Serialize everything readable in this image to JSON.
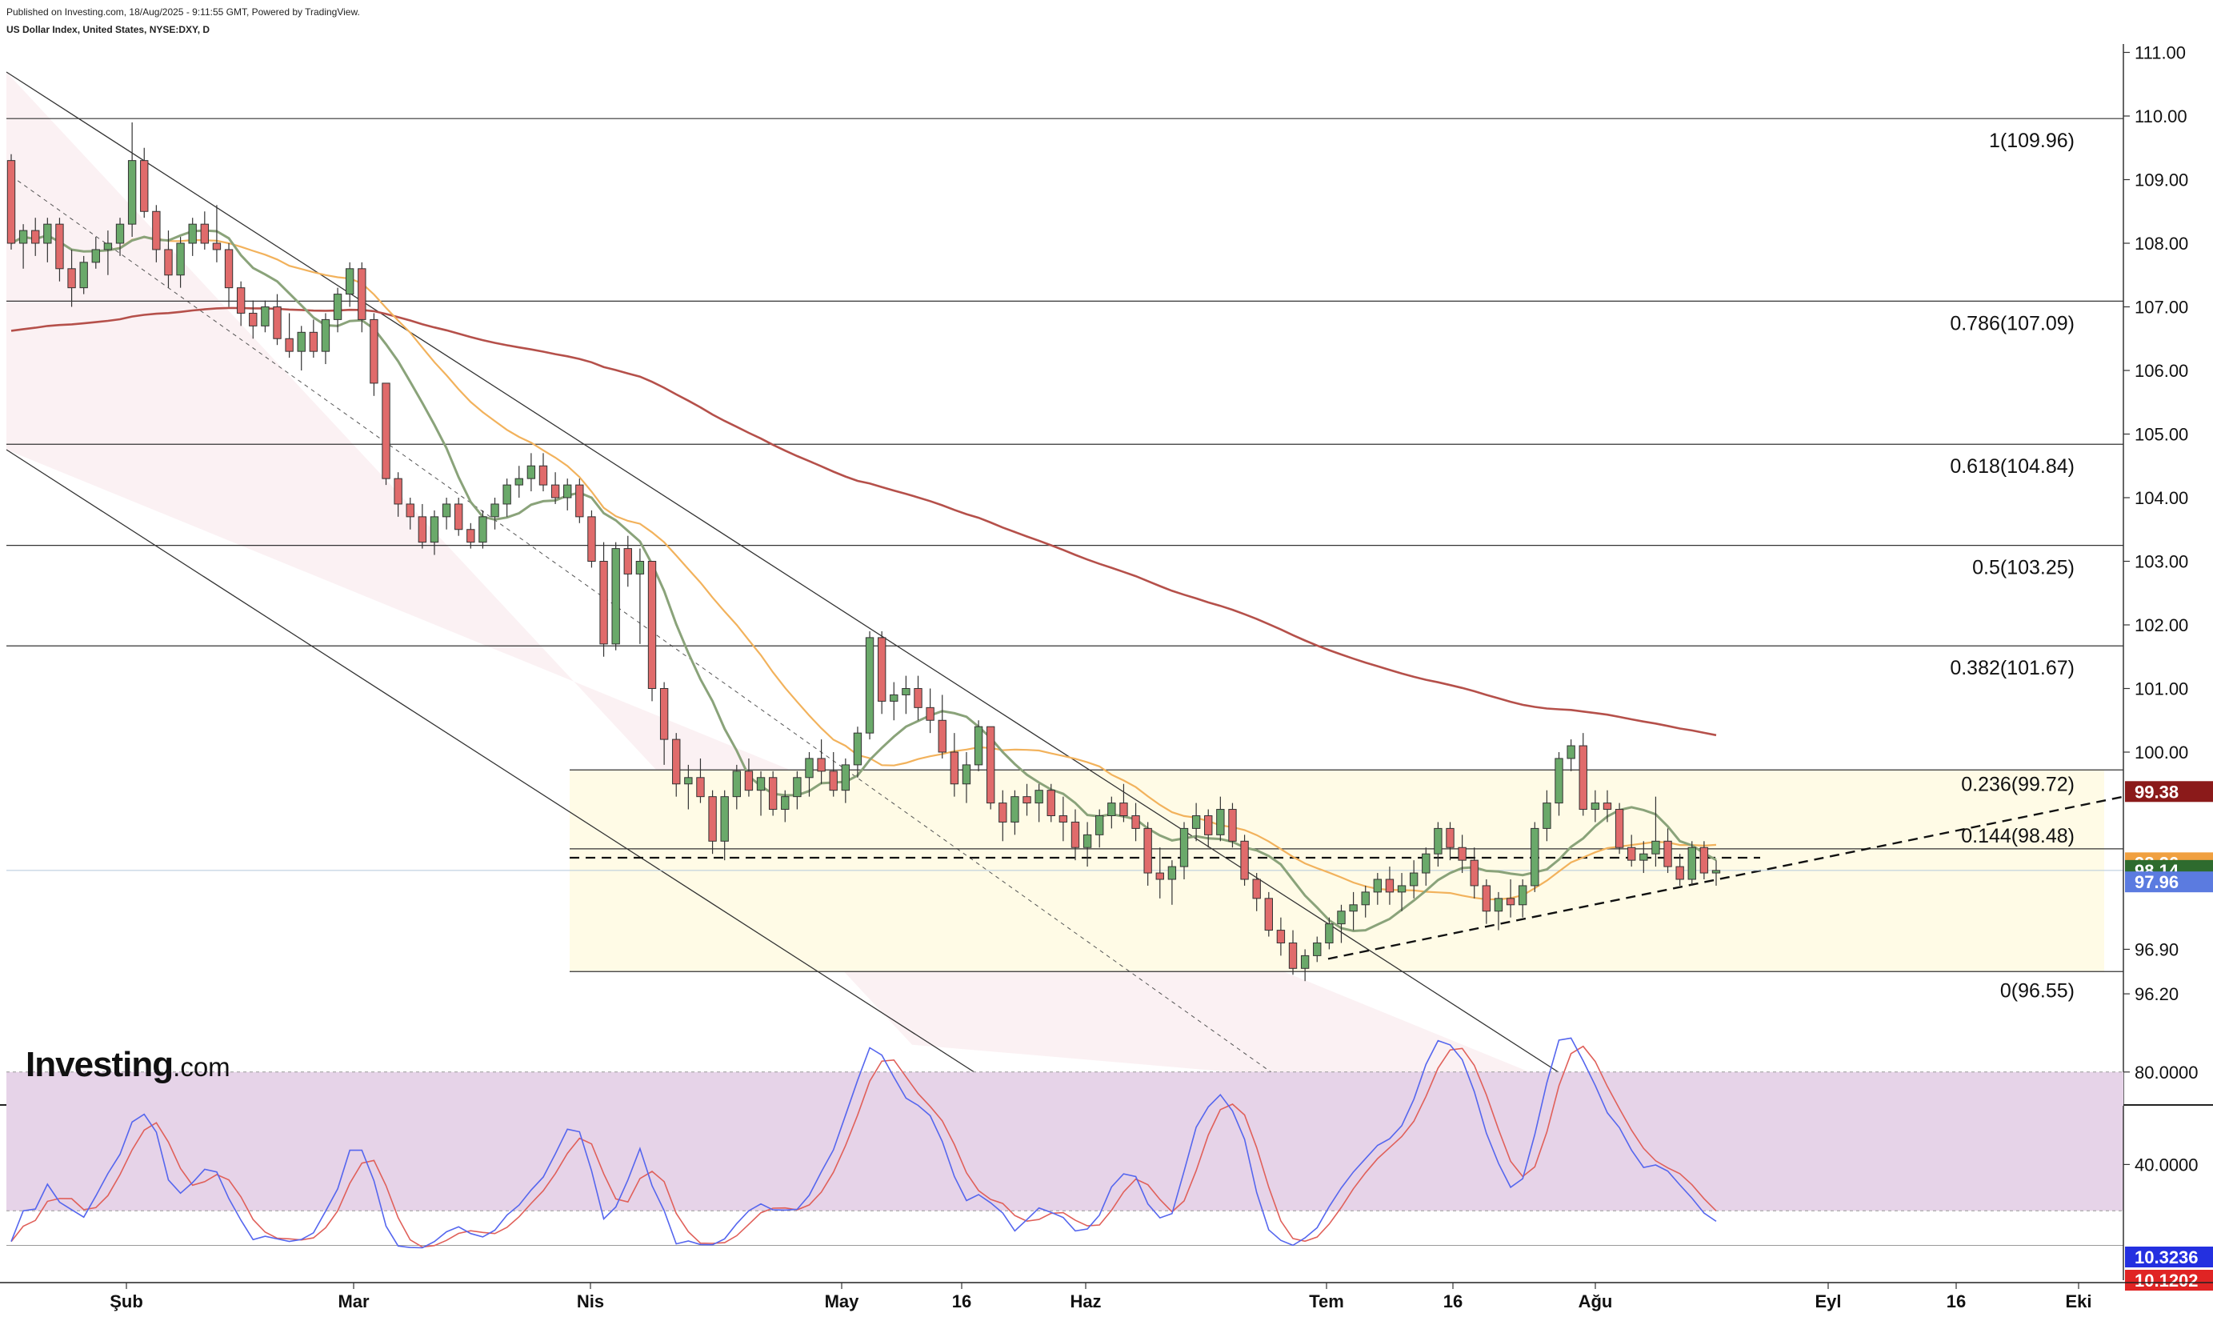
{
  "header": {
    "published": "Published on Investing.com, 18/Aug/2025 - 9:11:55 GMT, Powered by TradingView.",
    "symbol": "US Dollar Index, United States, NYSE:DXY, D"
  },
  "logo": {
    "brand": "Investing",
    "suffix": ".com"
  },
  "chart_data": {
    "type": "candlestick",
    "title": "US Dollar Index, United States, NYSE:DXY, D",
    "x_tick_labels": [
      "Şub",
      "Mar",
      "Nis",
      "May",
      "16",
      "Haz",
      "Tem",
      "16",
      "Ağu",
      "Eyl",
      "16",
      "Eki"
    ],
    "y_tick_labels": [
      "111.00",
      "110.00",
      "109.00",
      "108.00",
      "107.00",
      "106.00",
      "105.00",
      "104.00",
      "103.00",
      "102.00",
      "101.00",
      "100.00",
      "96.90",
      "96.20"
    ],
    "ylim": [
      96.0,
      111.5
    ],
    "fib_levels": [
      {
        "label": "1(109.96)",
        "value": 109.96
      },
      {
        "label": "0.786(107.09)",
        "value": 107.09
      },
      {
        "label": "0.618(104.84)",
        "value": 104.84
      },
      {
        "label": "0.5(103.25)",
        "value": 103.25
      },
      {
        "label": "0.382(101.67)",
        "value": 101.67
      },
      {
        "label": "0.236(99.72)",
        "value": 99.72
      },
      {
        "label": "0.144(98.48)",
        "value": 98.48
      },
      {
        "label": "0(96.55)",
        "value": 96.55
      }
    ],
    "price_badges": [
      {
        "label": "99.38",
        "value": 99.38,
        "color": "#8b1a1a"
      },
      {
        "label": "98.26",
        "value": 98.26,
        "color": "#f0a040"
      },
      {
        "label": "98.14",
        "value": 98.14,
        "color": "#2e6b2e"
      },
      {
        "label": "97.96",
        "value": 97.96,
        "color": "#5b7be0"
      }
    ],
    "candles": [
      [
        109.3,
        109.4,
        107.9,
        108.0
      ],
      [
        108.0,
        108.3,
        107.6,
        108.2
      ],
      [
        108.2,
        108.4,
        107.8,
        108.0
      ],
      [
        108.0,
        108.4,
        107.7,
        108.3
      ],
      [
        108.3,
        108.4,
        107.4,
        107.6
      ],
      [
        107.6,
        107.9,
        107.0,
        107.3
      ],
      [
        107.3,
        107.8,
        107.2,
        107.7
      ],
      [
        107.7,
        108.1,
        107.6,
        107.9
      ],
      [
        107.9,
        108.2,
        107.5,
        108.0
      ],
      [
        108.0,
        108.4,
        107.8,
        108.3
      ],
      [
        108.3,
        109.9,
        108.1,
        109.3
      ],
      [
        109.3,
        109.5,
        108.4,
        108.5
      ],
      [
        108.5,
        108.6,
        107.7,
        107.9
      ],
      [
        107.9,
        108.2,
        107.3,
        107.5
      ],
      [
        107.5,
        108.1,
        107.3,
        108.0
      ],
      [
        108.0,
        108.4,
        107.8,
        108.3
      ],
      [
        108.3,
        108.5,
        107.9,
        108.0
      ],
      [
        108.0,
        108.6,
        107.7,
        107.9
      ],
      [
        107.9,
        108.0,
        107.0,
        107.3
      ],
      [
        107.3,
        107.4,
        106.7,
        106.9
      ],
      [
        106.9,
        107.1,
        106.5,
        106.7
      ],
      [
        106.7,
        107.1,
        106.6,
        107.0
      ],
      [
        107.0,
        107.2,
        106.4,
        106.5
      ],
      [
        106.5,
        106.9,
        106.2,
        106.3
      ],
      [
        106.3,
        106.7,
        106.0,
        106.6
      ],
      [
        106.6,
        106.8,
        106.2,
        106.3
      ],
      [
        106.3,
        106.9,
        106.1,
        106.8
      ],
      [
        106.8,
        107.3,
        106.6,
        107.2
      ],
      [
        107.2,
        107.7,
        107.0,
        107.6
      ],
      [
        107.6,
        107.7,
        106.6,
        106.8
      ],
      [
        106.8,
        106.9,
        105.6,
        105.8
      ],
      [
        105.8,
        105.8,
        104.2,
        104.3
      ],
      [
        104.3,
        104.4,
        103.7,
        103.9
      ],
      [
        103.9,
        104.0,
        103.5,
        103.7
      ],
      [
        103.7,
        103.9,
        103.2,
        103.3
      ],
      [
        103.3,
        103.8,
        103.1,
        103.7
      ],
      [
        103.7,
        104.0,
        103.5,
        103.9
      ],
      [
        103.9,
        104.0,
        103.4,
        103.5
      ],
      [
        103.5,
        103.6,
        103.2,
        103.3
      ],
      [
        103.3,
        103.8,
        103.2,
        103.7
      ],
      [
        103.7,
        104.0,
        103.5,
        103.9
      ],
      [
        103.9,
        104.3,
        103.7,
        104.2
      ],
      [
        104.2,
        104.5,
        104.0,
        104.3
      ],
      [
        104.3,
        104.7,
        104.1,
        104.5
      ],
      [
        104.5,
        104.7,
        104.1,
        104.2
      ],
      [
        104.2,
        104.4,
        103.9,
        104.0
      ],
      [
        104.0,
        104.3,
        103.8,
        104.2
      ],
      [
        104.2,
        104.3,
        103.6,
        103.7
      ],
      [
        103.7,
        103.8,
        102.9,
        103.0
      ],
      [
        103.0,
        103.3,
        101.5,
        101.7
      ],
      [
        101.7,
        103.3,
        101.6,
        103.2
      ],
      [
        103.2,
        103.4,
        102.6,
        102.8
      ],
      [
        102.8,
        103.2,
        101.7,
        103.0
      ],
      [
        103.0,
        103.0,
        100.8,
        101.0
      ],
      [
        101.0,
        101.1,
        99.8,
        100.2
      ],
      [
        100.2,
        100.3,
        99.3,
        99.5
      ],
      [
        99.5,
        99.8,
        99.1,
        99.6
      ],
      [
        99.6,
        99.9,
        99.2,
        99.3
      ],
      [
        99.3,
        99.4,
        98.4,
        98.6
      ],
      [
        98.6,
        99.4,
        98.3,
        99.3
      ],
      [
        99.3,
        99.8,
        99.1,
        99.7
      ],
      [
        99.7,
        99.9,
        99.3,
        99.4
      ],
      [
        99.4,
        99.7,
        99.0,
        99.6
      ],
      [
        99.6,
        99.7,
        99.0,
        99.1
      ],
      [
        99.1,
        99.4,
        98.9,
        99.3
      ],
      [
        99.3,
        99.7,
        99.1,
        99.6
      ],
      [
        99.6,
        100.0,
        99.3,
        99.9
      ],
      [
        99.9,
        100.2,
        99.5,
        99.7
      ],
      [
        99.7,
        100.0,
        99.3,
        99.4
      ],
      [
        99.4,
        99.9,
        99.2,
        99.8
      ],
      [
        99.8,
        100.4,
        99.6,
        100.3
      ],
      [
        100.3,
        101.9,
        100.2,
        101.8
      ],
      [
        101.8,
        101.9,
        100.6,
        100.8
      ],
      [
        100.8,
        101.1,
        100.5,
        100.9
      ],
      [
        100.9,
        101.2,
        100.6,
        101.0
      ],
      [
        101.0,
        101.2,
        100.5,
        100.7
      ],
      [
        100.7,
        101.0,
        100.3,
        100.5
      ],
      [
        100.5,
        100.9,
        99.9,
        100.0
      ],
      [
        100.0,
        100.3,
        99.3,
        99.5
      ],
      [
        99.5,
        100.0,
        99.2,
        99.8
      ],
      [
        99.8,
        100.5,
        99.7,
        100.4
      ],
      [
        100.4,
        100.4,
        99.1,
        99.2
      ],
      [
        99.2,
        99.4,
        98.6,
        98.9
      ],
      [
        98.9,
        99.4,
        98.7,
        99.3
      ],
      [
        99.3,
        99.5,
        99.0,
        99.2
      ],
      [
        99.2,
        99.5,
        98.9,
        99.4
      ],
      [
        99.4,
        99.5,
        98.9,
        99.0
      ],
      [
        99.0,
        99.3,
        98.6,
        98.9
      ],
      [
        98.9,
        99.1,
        98.3,
        98.5
      ],
      [
        98.5,
        98.9,
        98.2,
        98.7
      ],
      [
        98.7,
        99.1,
        98.5,
        99.0
      ],
      [
        99.0,
        99.3,
        98.8,
        99.2
      ],
      [
        99.2,
        99.5,
        98.9,
        99.0
      ],
      [
        99.0,
        99.2,
        98.6,
        98.8
      ],
      [
        98.8,
        98.9,
        97.9,
        98.1
      ],
      [
        98.1,
        98.5,
        97.7,
        98.0
      ],
      [
        98.0,
        98.3,
        97.6,
        98.2
      ],
      [
        98.2,
        98.9,
        98.0,
        98.8
      ],
      [
        98.8,
        99.2,
        98.6,
        99.0
      ],
      [
        99.0,
        99.1,
        98.5,
        98.7
      ],
      [
        98.7,
        99.3,
        98.6,
        99.1
      ],
      [
        99.1,
        99.2,
        98.5,
        98.6
      ],
      [
        98.6,
        98.7,
        97.9,
        98.0
      ],
      [
        98.0,
        98.1,
        97.5,
        97.7
      ],
      [
        97.7,
        97.8,
        97.1,
        97.2
      ],
      [
        97.2,
        97.4,
        96.8,
        97.0
      ],
      [
        97.0,
        97.2,
        96.5,
        96.6
      ],
      [
        96.6,
        96.9,
        96.4,
        96.8
      ],
      [
        96.8,
        97.1,
        96.7,
        97.0
      ],
      [
        97.0,
        97.4,
        96.9,
        97.3
      ],
      [
        97.3,
        97.6,
        97.0,
        97.5
      ],
      [
        97.5,
        97.8,
        97.2,
        97.6
      ],
      [
        97.6,
        97.9,
        97.4,
        97.8
      ],
      [
        97.8,
        98.1,
        97.6,
        98.0
      ],
      [
        98.0,
        98.2,
        97.6,
        97.8
      ],
      [
        97.8,
        98.1,
        97.5,
        97.9
      ],
      [
        97.9,
        98.3,
        97.7,
        98.1
      ],
      [
        98.1,
        98.5,
        97.9,
        98.4
      ],
      [
        98.4,
        98.9,
        98.2,
        98.8
      ],
      [
        98.8,
        98.9,
        98.3,
        98.5
      ],
      [
        98.5,
        98.7,
        98.1,
        98.3
      ],
      [
        98.3,
        98.5,
        97.7,
        97.9
      ],
      [
        97.9,
        98.0,
        97.3,
        97.5
      ],
      [
        97.5,
        97.8,
        97.2,
        97.7
      ],
      [
        97.7,
        98.0,
        97.4,
        97.6
      ],
      [
        97.6,
        98.0,
        97.4,
        97.9
      ],
      [
        97.9,
        98.9,
        97.8,
        98.8
      ],
      [
        98.8,
        99.4,
        98.6,
        99.2
      ],
      [
        99.2,
        100.0,
        99.0,
        99.9
      ],
      [
        99.9,
        100.2,
        99.7,
        100.1
      ],
      [
        100.1,
        100.3,
        99.0,
        99.1
      ],
      [
        99.1,
        99.4,
        98.9,
        99.2
      ],
      [
        99.2,
        99.4,
        98.9,
        99.1
      ],
      [
        99.1,
        99.2,
        98.4,
        98.5
      ],
      [
        98.5,
        98.7,
        98.2,
        98.3
      ],
      [
        98.3,
        98.6,
        98.1,
        98.4
      ],
      [
        98.4,
        99.3,
        98.2,
        98.6
      ],
      [
        98.6,
        98.8,
        98.1,
        98.2
      ],
      [
        98.2,
        98.4,
        97.9,
        98.0
      ],
      [
        98.0,
        98.6,
        97.9,
        98.5
      ],
      [
        98.5,
        98.6,
        98.0,
        98.1
      ],
      [
        98.1,
        98.3,
        97.9,
        98.14
      ]
    ],
    "stochastic": {
      "ylim": [
        0,
        100
      ],
      "tick_labels": [
        "80.0000",
        "40.0000"
      ],
      "overbought": 80,
      "oversold": 20,
      "badges": [
        {
          "label": "10.3236",
          "value": 10.3236,
          "color": "#2430e0"
        },
        {
          "label": "10.1202",
          "value": 10.12,
          "color": "#e02424"
        }
      ]
    }
  },
  "colors": {
    "up": "#6aa96a",
    "down": "#e06b6b",
    "ma_fast": "#8aa37a",
    "ma_mid": "#f2b25c",
    "ma_slow": "#b5504a",
    "channel_fill": "#fbf1f3",
    "range_fill": "#fffbe6",
    "stoch_band": "#e6d3e8",
    "stoch_k": "#5566ee",
    "stoch_d": "#e0605a"
  }
}
